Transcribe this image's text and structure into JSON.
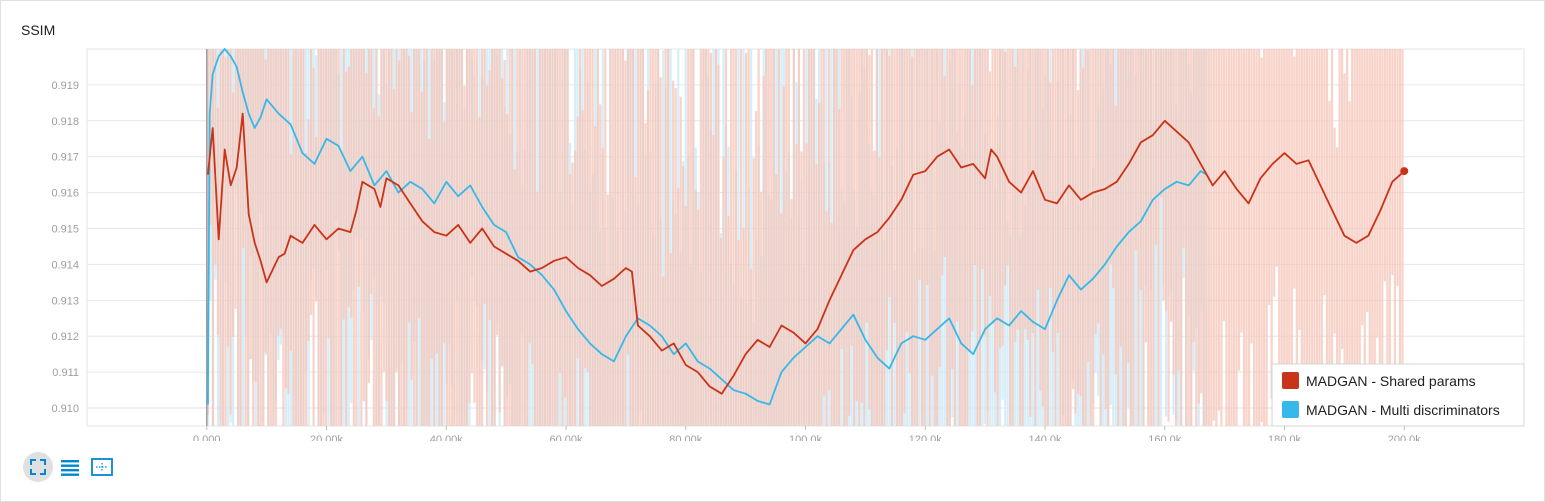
{
  "chart_data": {
    "type": "line",
    "title": "SSIM",
    "xlabel": "",
    "ylabel": "",
    "xlim": [
      -20000,
      220000
    ],
    "ylim": [
      0.9095,
      0.92
    ],
    "x_ticks": [
      0,
      20000,
      40000,
      60000,
      80000,
      100000,
      120000,
      140000,
      160000,
      180000,
      200000
    ],
    "x_tick_labels": [
      "0.000",
      "20.00k",
      "40.00k",
      "60.00k",
      "80.00k",
      "100.0k",
      "120.0k",
      "140.0k",
      "160.0k",
      "180.0k",
      "200.0k"
    ],
    "y_ticks": [
      0.91,
      0.911,
      0.912,
      0.913,
      0.914,
      0.915,
      0.916,
      0.917,
      0.918,
      0.919
    ],
    "y_tick_labels": [
      "0.910",
      "0.911",
      "0.912",
      "0.913",
      "0.914",
      "0.915",
      "0.916",
      "0.917",
      "0.918",
      "0.919"
    ],
    "grid": true,
    "legend_position": "bottom-right",
    "series": [
      {
        "name": "MADGAN - Shared params",
        "color": "#c83418",
        "raw_color": "#f5c8bd",
        "x": [
          200,
          1000,
          2000,
          3000,
          4000,
          5000,
          6000,
          7000,
          8000,
          9000,
          10000,
          12000,
          13000,
          14000,
          16000,
          18000,
          20000,
          22000,
          24000,
          25000,
          26000,
          28000,
          29000,
          30000,
          32000,
          34000,
          36000,
          38000,
          40000,
          42000,
          44000,
          46000,
          48000,
          50000,
          52000,
          54000,
          56000,
          58000,
          60000,
          62000,
          64000,
          66000,
          68000,
          70000,
          71000,
          72000,
          74000,
          76000,
          78000,
          80000,
          82000,
          84000,
          86000,
          88000,
          90000,
          92000,
          94000,
          96000,
          98000,
          100000,
          102000,
          104000,
          106000,
          108000,
          110000,
          112000,
          114000,
          116000,
          118000,
          120000,
          122000,
          124000,
          126000,
          128000,
          130000,
          131000,
          132000,
          134000,
          136000,
          138000,
          140000,
          142000,
          144000,
          146000,
          148000,
          150000,
          152000,
          154000,
          156000,
          158000,
          160000,
          162000,
          164000,
          166000,
          168000,
          170000,
          172000,
          174000,
          176000,
          178000,
          180000,
          182000,
          184000,
          186000,
          188000,
          190000,
          192000,
          194000,
          196000,
          198000,
          200000
        ],
        "y": [
          0.9165,
          0.9178,
          0.9147,
          0.9172,
          0.9162,
          0.9167,
          0.9182,
          0.9154,
          0.9146,
          0.9141,
          0.9135,
          0.9142,
          0.9143,
          0.9148,
          0.9146,
          0.9151,
          0.9147,
          0.915,
          0.9149,
          0.9155,
          0.9163,
          0.9161,
          0.9156,
          0.9164,
          0.9162,
          0.9157,
          0.9152,
          0.9149,
          0.9148,
          0.9151,
          0.9146,
          0.915,
          0.9145,
          0.9143,
          0.9141,
          0.9138,
          0.9139,
          0.9141,
          0.9142,
          0.9139,
          0.9137,
          0.9134,
          0.9136,
          0.9139,
          0.9138,
          0.9123,
          0.912,
          0.9116,
          0.9118,
          0.9112,
          0.911,
          0.9106,
          0.9104,
          0.9109,
          0.9115,
          0.9119,
          0.9117,
          0.9123,
          0.9121,
          0.9118,
          0.9122,
          0.913,
          0.9137,
          0.9144,
          0.9147,
          0.9149,
          0.9153,
          0.9158,
          0.9165,
          0.9166,
          0.917,
          0.9172,
          0.9167,
          0.9168,
          0.9164,
          0.9172,
          0.917,
          0.9163,
          0.916,
          0.9166,
          0.9158,
          0.9157,
          0.9162,
          0.9158,
          0.916,
          0.9161,
          0.9163,
          0.9168,
          0.9174,
          0.9176,
          0.918,
          0.9177,
          0.9174,
          0.9168,
          0.9162,
          0.9166,
          0.9161,
          0.9157,
          0.9164,
          0.9168,
          0.9171,
          0.9168,
          0.9169,
          0.9162,
          0.9155,
          0.9148,
          0.9146,
          0.9148,
          0.9155,
          0.9163,
          0.9166
        ]
      },
      {
        "name": "MADGAN - Multi discriminators",
        "color": "#36b9ea",
        "raw_color": "#cdeaf6",
        "x": [
          200,
          500,
          1000,
          2000,
          3000,
          4000,
          5000,
          6000,
          7000,
          8000,
          9000,
          10000,
          12000,
          14000,
          16000,
          18000,
          20000,
          22000,
          24000,
          26000,
          28000,
          30000,
          32000,
          34000,
          36000,
          38000,
          40000,
          42000,
          44000,
          46000,
          48000,
          50000,
          52000,
          54000,
          56000,
          58000,
          60000,
          62000,
          64000,
          66000,
          68000,
          70000,
          72000,
          74000,
          76000,
          78000,
          80000,
          82000,
          84000,
          86000,
          88000,
          90000,
          92000,
          94000,
          96000,
          98000,
          100000,
          102000,
          104000,
          106000,
          108000,
          110000,
          112000,
          114000,
          116000,
          118000,
          120000,
          122000,
          124000,
          126000,
          128000,
          130000,
          132000,
          134000,
          136000,
          138000,
          140000,
          142000,
          144000,
          146000,
          148000,
          150000,
          152000,
          154000,
          156000,
          158000,
          160000,
          162000,
          164000,
          166000,
          167000
        ],
        "y": [
          0.9101,
          0.9182,
          0.9193,
          0.9198,
          0.92,
          0.9198,
          0.9195,
          0.9188,
          0.9182,
          0.9178,
          0.9181,
          0.9186,
          0.9182,
          0.9179,
          0.9171,
          0.9168,
          0.9175,
          0.9173,
          0.9166,
          0.917,
          0.9162,
          0.9166,
          0.916,
          0.9163,
          0.9161,
          0.9157,
          0.9163,
          0.9159,
          0.9162,
          0.9156,
          0.9151,
          0.9149,
          0.9142,
          0.914,
          0.9137,
          0.9133,
          0.9127,
          0.9122,
          0.9118,
          0.9115,
          0.9113,
          0.912,
          0.9125,
          0.9123,
          0.912,
          0.9115,
          0.9118,
          0.9113,
          0.9111,
          0.9108,
          0.9105,
          0.9104,
          0.9102,
          0.9101,
          0.911,
          0.9114,
          0.9117,
          0.912,
          0.9118,
          0.9122,
          0.9126,
          0.9119,
          0.9114,
          0.9111,
          0.9118,
          0.912,
          0.9119,
          0.9122,
          0.9125,
          0.9118,
          0.9115,
          0.9122,
          0.9125,
          0.9123,
          0.9127,
          0.9124,
          0.9122,
          0.913,
          0.9137,
          0.9133,
          0.9136,
          0.914,
          0.9145,
          0.9149,
          0.9152,
          0.9158,
          0.9161,
          0.9163,
          0.9162,
          0.9166,
          0.9165
        ]
      }
    ]
  },
  "toolbar": {
    "buttons": [
      {
        "icon": "expand-icon",
        "color": "#0288d1"
      },
      {
        "icon": "lines-icon",
        "color": "#0288d1"
      },
      {
        "icon": "fit-domain-icon",
        "color": "#0288d1"
      }
    ]
  }
}
